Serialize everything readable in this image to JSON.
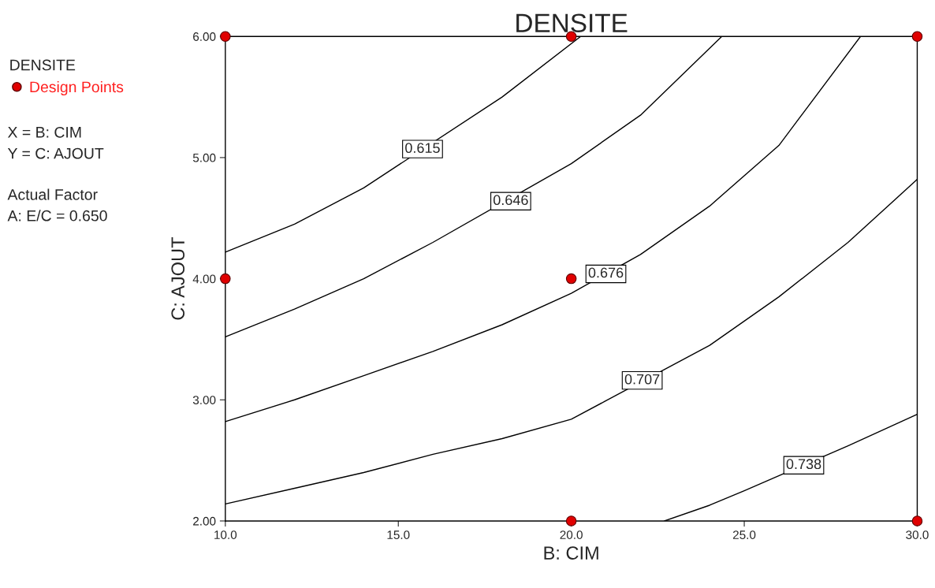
{
  "chart_data": {
    "type": "line",
    "title": "DENSITE",
    "xlabel": "B: CIM",
    "ylabel": "C: AJOUT",
    "legend_title": "DENSITE",
    "legend": "left",
    "xlim": [
      10,
      30
    ],
    "ylim": [
      2,
      6
    ],
    "xticks": [
      {
        "value": 10,
        "label": "10.0"
      },
      {
        "value": 15,
        "label": "15.0"
      },
      {
        "value": 20,
        "label": "20.0"
      },
      {
        "value": 25,
        "label": "25.0"
      },
      {
        "value": 30,
        "label": "30.0"
      }
    ],
    "yticks": [
      {
        "value": 2,
        "label": "2.00"
      },
      {
        "value": 3,
        "label": "3.00"
      },
      {
        "value": 4,
        "label": "4.00"
      },
      {
        "value": 5,
        "label": "5.00"
      },
      {
        "value": 6,
        "label": "6.00"
      }
    ],
    "grid": false,
    "series": [
      {
        "color": "#000000",
        "x": [
          10,
          12,
          14,
          18,
          20.27
        ],
        "values": [
          4.22,
          4.45,
          4.75,
          5.5,
          6
        ]
      },
      {
        "color": "#000000",
        "x": [
          10,
          12,
          14,
          16,
          20,
          22,
          24.35
        ],
        "values": [
          3.52,
          3.75,
          4.0,
          4.3,
          4.95,
          5.35,
          6
        ]
      },
      {
        "color": "#000000",
        "x": [
          10,
          12,
          14,
          16,
          18,
          20,
          22,
          24,
          26,
          28.36
        ],
        "values": [
          2.82,
          3.0,
          3.2,
          3.4,
          3.62,
          3.88,
          4.2,
          4.6,
          5.1,
          6
        ]
      },
      {
        "color": "#000000",
        "x": [
          10,
          12,
          14,
          16,
          18,
          20,
          24,
          26,
          28,
          30
        ],
        "values": [
          2.14,
          2.27,
          2.4,
          2.55,
          2.68,
          2.84,
          3.45,
          3.85,
          4.3,
          4.82
        ]
      },
      {
        "color": "#000000",
        "x": [
          22.69,
          24,
          25,
          28,
          30
        ],
        "values": [
          2,
          2.13,
          2.25,
          2.62,
          2.88
        ]
      },
      {
        "type": "scatter",
        "name": "Design Points",
        "color": "#e00000",
        "marker": "circle",
        "x": [
          10,
          20,
          30,
          10,
          20,
          20,
          30
        ],
        "values": [
          6,
          6,
          6,
          4,
          4,
          2,
          2
        ]
      }
    ],
    "annotations": [
      {
        "text": "0.615",
        "x": 15.7,
        "y": 5.07
      },
      {
        "text": "0.646",
        "x": 18.25,
        "y": 4.64
      },
      {
        "text": "0.676",
        "x": 21.0,
        "y": 4.04
      },
      {
        "text": "0.707",
        "x": 22.05,
        "y": 3.16
      },
      {
        "text": "0.738",
        "x": 26.72,
        "y": 2.46
      },
      "X = B: CIM",
      "Y = C: AJOUT",
      "Actual Factor",
      "A: E/C = 0.650"
    ]
  }
}
